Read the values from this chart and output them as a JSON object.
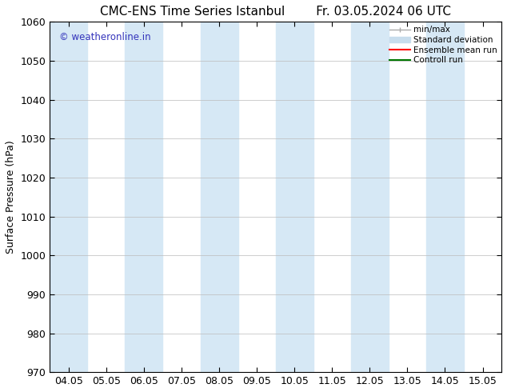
{
  "title": "CMC-ENS Time Series Istanbul",
  "title_right": "Fr. 03.05.2024 06 UTC",
  "ylabel": "Surface Pressure (hPa)",
  "ylim": [
    970,
    1060
  ],
  "yticks": [
    970,
    980,
    990,
    1000,
    1010,
    1020,
    1030,
    1040,
    1050,
    1060
  ],
  "xtick_labels": [
    "04.05",
    "05.05",
    "06.05",
    "07.05",
    "08.05",
    "09.05",
    "10.05",
    "11.05",
    "12.05",
    "13.05",
    "14.05",
    "15.05"
  ],
  "shaded_bands": [
    {
      "xstart": -0.5,
      "xend": 0.5,
      "color": "#d6e8f5"
    },
    {
      "xstart": 1.5,
      "xend": 2.5,
      "color": "#d6e8f5"
    },
    {
      "xstart": 3.5,
      "xend": 4.5,
      "color": "#d6e8f5"
    },
    {
      "xstart": 5.5,
      "xend": 6.5,
      "color": "#d6e8f5"
    },
    {
      "xstart": 7.5,
      "xend": 8.5,
      "color": "#d6e8f5"
    },
    {
      "xstart": 9.5,
      "xend": 10.5,
      "color": "#d6e8f5"
    },
    {
      "xstart": 11.5,
      "xend": 12.5,
      "color": "#d6e8f5"
    }
  ],
  "watermark": "© weatheronline.in",
  "watermark_color": "#3333bb",
  "legend_labels": [
    "min/max",
    "Standard deviation",
    "Ensemble mean run",
    "Controll run"
  ],
  "legend_colors": [
    "#aaaaaa",
    "#c8dded",
    "#ff0000",
    "#007700"
  ],
  "bg_color": "#ffffff",
  "plot_bg_color": "#ffffff",
  "border_color": "#000000",
  "font_size": 9,
  "title_font_size": 11
}
